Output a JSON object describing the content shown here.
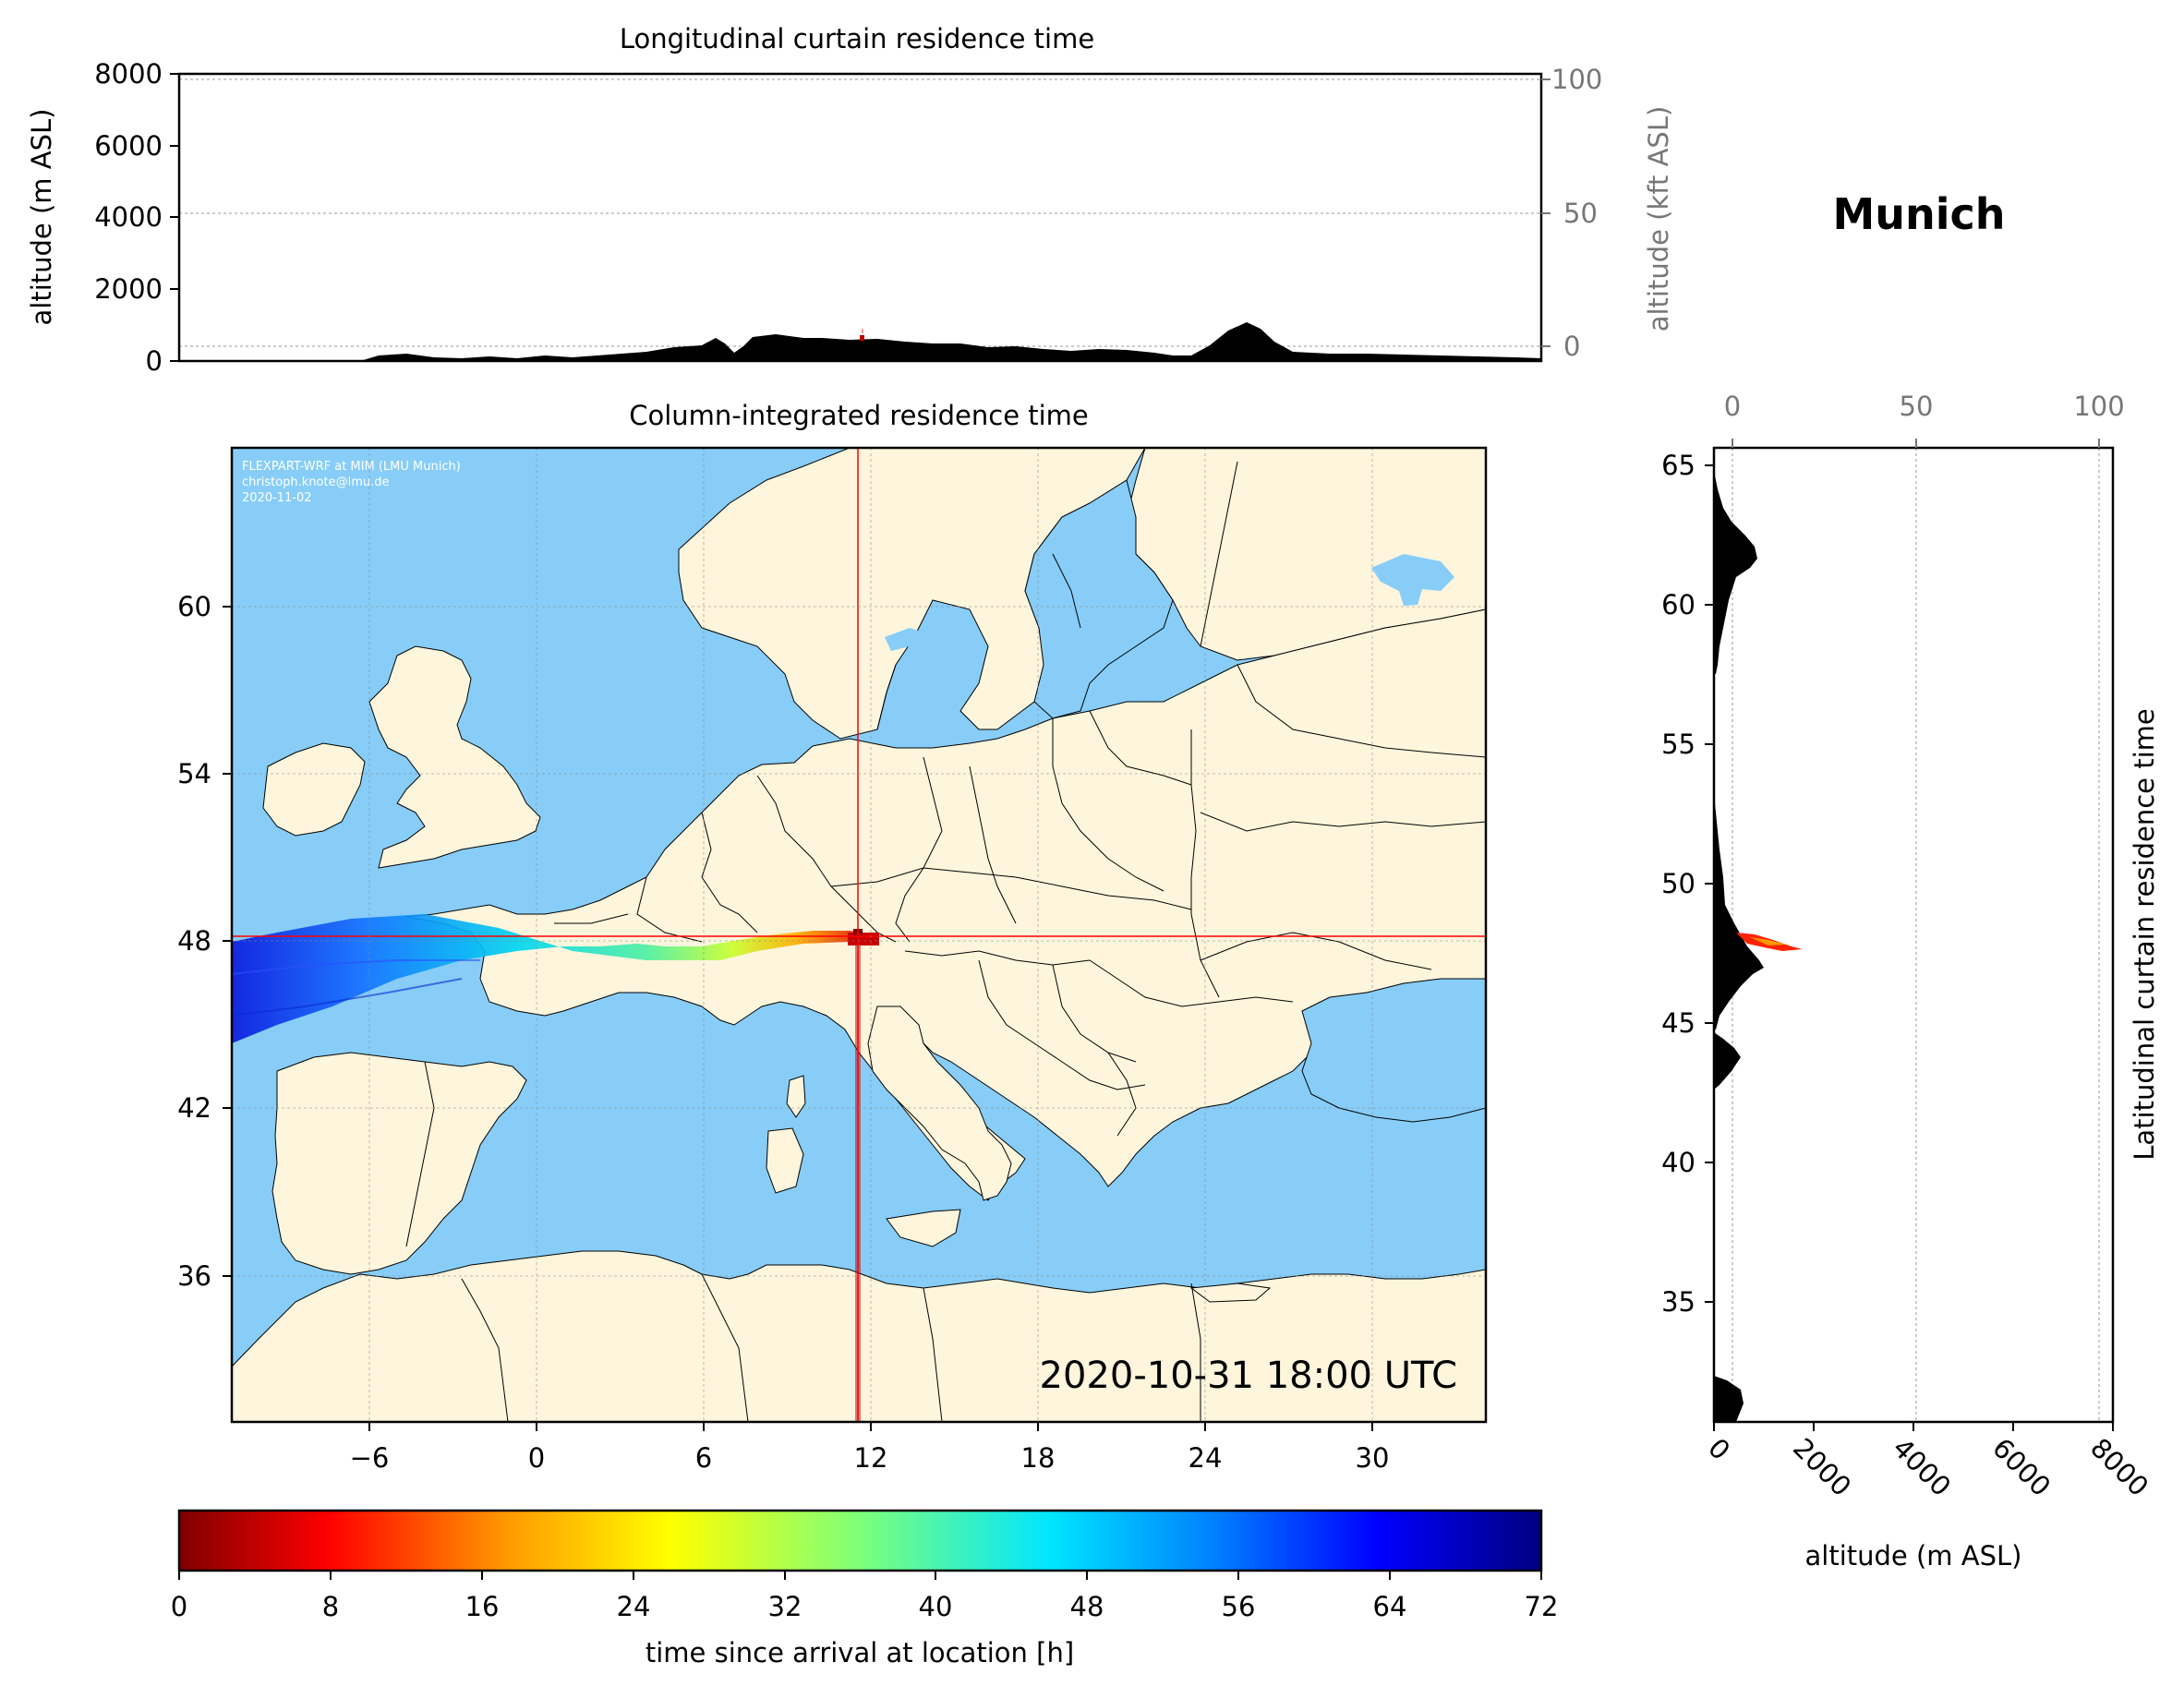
{
  "station": "Munich",
  "top_panel": {
    "title": "Longitudinal curtain residence time",
    "ylabel_left": "altitude (m ASL)",
    "ylabel_right": "altitude (kft ASL)",
    "left_ticks": [
      "0",
      "2000",
      "4000",
      "6000",
      "8000"
    ],
    "right_ticks": [
      "0",
      "50",
      "100"
    ]
  },
  "map_panel": {
    "title": "Column-integrated residence time",
    "credit_line1": "FLEXPART-WRF at MIM (LMU Munich)",
    "credit_line2": "christoph.knote@lmu.de",
    "credit_line3": "2020-11-02",
    "timestamp": "2020-10-31 18:00 UTC",
    "lon_ticks": [
      "−6",
      "0",
      "6",
      "12",
      "18",
      "24",
      "30"
    ],
    "lat_ticks": [
      "36",
      "42",
      "48",
      "54",
      "60"
    ],
    "land_color": "#fdf5dc",
    "ocean_color": "#87cdf8",
    "crosshair_color": "#ff0000",
    "receptor_lon": 11.6,
    "receptor_lat": 48.1
  },
  "right_panel": {
    "ylabel": "Latitudinal curtain residence time",
    "xlabel": "altitude (m ASL)",
    "top_ticks": [
      "0",
      "50",
      "100"
    ],
    "bottom_ticks": [
      "0",
      "2000",
      "4000",
      "6000",
      "8000"
    ],
    "lat_ticks": [
      "35",
      "40",
      "45",
      "50",
      "55",
      "60",
      "65"
    ]
  },
  "colorbar": {
    "label": "time since arrival at location [h]",
    "ticks": [
      "0",
      "8",
      "16",
      "24",
      "32",
      "40",
      "48",
      "56",
      "64",
      "72"
    ],
    "colormap": "jet_r"
  },
  "chart_data": {
    "type": "heatmap",
    "title": "Column-integrated residence time",
    "xlim": [
      -11,
      34
    ],
    "ylim": [
      30,
      65
    ],
    "plume": [
      {
        "lon": 11.6,
        "lat": 48.1,
        "hours": 0
      },
      {
        "lon": 10.0,
        "lat": 47.9,
        "hours": 10
      },
      {
        "lon": 8.0,
        "lat": 47.4,
        "hours": 20
      },
      {
        "lon": 5.0,
        "lat": 47.2,
        "hours": 30
      },
      {
        "lon": 1.0,
        "lat": 47.1,
        "hours": 40
      },
      {
        "lon": -4.0,
        "lat": 46.9,
        "hours": 50
      },
      {
        "lon": -8.0,
        "lat": 46.6,
        "hours": 60
      },
      {
        "lon": -11.0,
        "lat": 46.4,
        "hours": 68
      }
    ]
  }
}
